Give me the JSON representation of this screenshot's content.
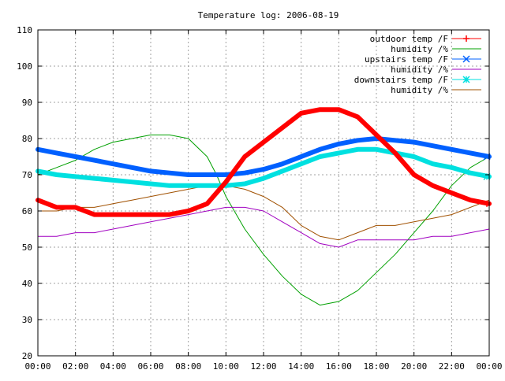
{
  "chart_data": {
    "type": "line",
    "title": "Temperature log: 2006-08-19",
    "xlabel": "",
    "ylabel": "",
    "xlim": [
      0,
      24
    ],
    "ylim": [
      20,
      110
    ],
    "grid": true,
    "legend_position": "top-right",
    "x_ticks": [
      "00:00",
      "02:00",
      "04:00",
      "06:00",
      "08:00",
      "10:00",
      "12:00",
      "14:00",
      "16:00",
      "18:00",
      "20:00",
      "22:00",
      "00:00"
    ],
    "y_ticks": [
      20,
      30,
      40,
      50,
      60,
      70,
      80,
      90,
      100,
      110
    ],
    "series": [
      {
        "name": "outdoor temp /F",
        "color": "#ff0000",
        "marker": "plus",
        "x": [
          0,
          1,
          2,
          3,
          4,
          5,
          6,
          7,
          8,
          9,
          10,
          11,
          12,
          13,
          14,
          15,
          16,
          17,
          18,
          19,
          20,
          21,
          22,
          23,
          24
        ],
        "y": [
          63,
          61,
          61,
          59,
          59,
          59,
          59,
          59,
          60,
          62,
          68,
          75,
          79,
          83,
          87,
          88,
          88,
          86,
          81,
          76,
          70,
          67,
          65,
          63,
          62
        ]
      },
      {
        "name": "humidity /%",
        "color": "#00a000",
        "marker": "none",
        "x": [
          0,
          1,
          2,
          3,
          4,
          5,
          6,
          7,
          8,
          9,
          9.5,
          10,
          11,
          12,
          13,
          14,
          15,
          16,
          17,
          18,
          19,
          20,
          21,
          22,
          23,
          24
        ],
        "y": [
          70,
          72,
          74,
          77,
          79,
          80,
          81,
          81,
          80,
          75,
          70,
          64,
          55,
          48,
          42,
          37,
          34,
          35,
          38,
          43,
          48,
          54,
          60,
          67,
          72,
          75
        ]
      },
      {
        "name": "upstairs temp /F",
        "color": "#0060ff",
        "marker": "cross",
        "x": [
          0,
          1,
          2,
          3,
          4,
          5,
          6,
          7,
          8,
          9,
          10,
          11,
          12,
          13,
          14,
          15,
          16,
          17,
          18,
          19,
          20,
          21,
          22,
          23,
          24
        ],
        "y": [
          77,
          76,
          75,
          74,
          73,
          72,
          71,
          70.5,
          70,
          70,
          70,
          70.5,
          71.5,
          73,
          75,
          77,
          78.5,
          79.5,
          80,
          79.5,
          79,
          78,
          77,
          76,
          75
        ]
      },
      {
        "name": "humidity /%",
        "color": "#a000c0",
        "marker": "none",
        "x": [
          0,
          1,
          2,
          3,
          4,
          5,
          6,
          7,
          8,
          9,
          10,
          11,
          12,
          13,
          14,
          15,
          16,
          17,
          18,
          19,
          20,
          21,
          22,
          23,
          24
        ],
        "y": [
          53,
          53,
          54,
          54,
          55,
          56,
          57,
          58,
          59,
          60,
          61,
          61,
          60,
          57,
          54,
          51,
          50,
          52,
          52,
          52,
          52,
          53,
          53,
          54,
          55
        ]
      },
      {
        "name": "downstairs temp /F",
        "color": "#00e0e0",
        "marker": "star",
        "x": [
          0,
          1,
          2,
          3,
          4,
          5,
          6,
          7,
          8,
          9,
          10,
          11,
          12,
          13,
          14,
          15,
          16,
          17,
          18,
          19,
          20,
          21,
          22,
          23,
          24
        ],
        "y": [
          71,
          70,
          69.5,
          69,
          68.5,
          68,
          67.5,
          67,
          67,
          67,
          67,
          67.5,
          69,
          71,
          73,
          75,
          76,
          77,
          77,
          76,
          75,
          73,
          72,
          70.5,
          69.5
        ]
      },
      {
        "name": "humidity /%",
        "color": "#a05000",
        "marker": "none",
        "x": [
          0,
          1,
          2,
          3,
          4,
          5,
          6,
          7,
          8,
          9,
          10,
          11,
          12,
          13,
          14,
          15,
          16,
          17,
          18,
          19,
          20,
          21,
          22,
          23,
          24
        ],
        "y": [
          60,
          60,
          61,
          61,
          62,
          63,
          64,
          65,
          66,
          67,
          67,
          66,
          64,
          61,
          56,
          53,
          52,
          54,
          56,
          56,
          57,
          58,
          59,
          61,
          63
        ]
      }
    ]
  }
}
